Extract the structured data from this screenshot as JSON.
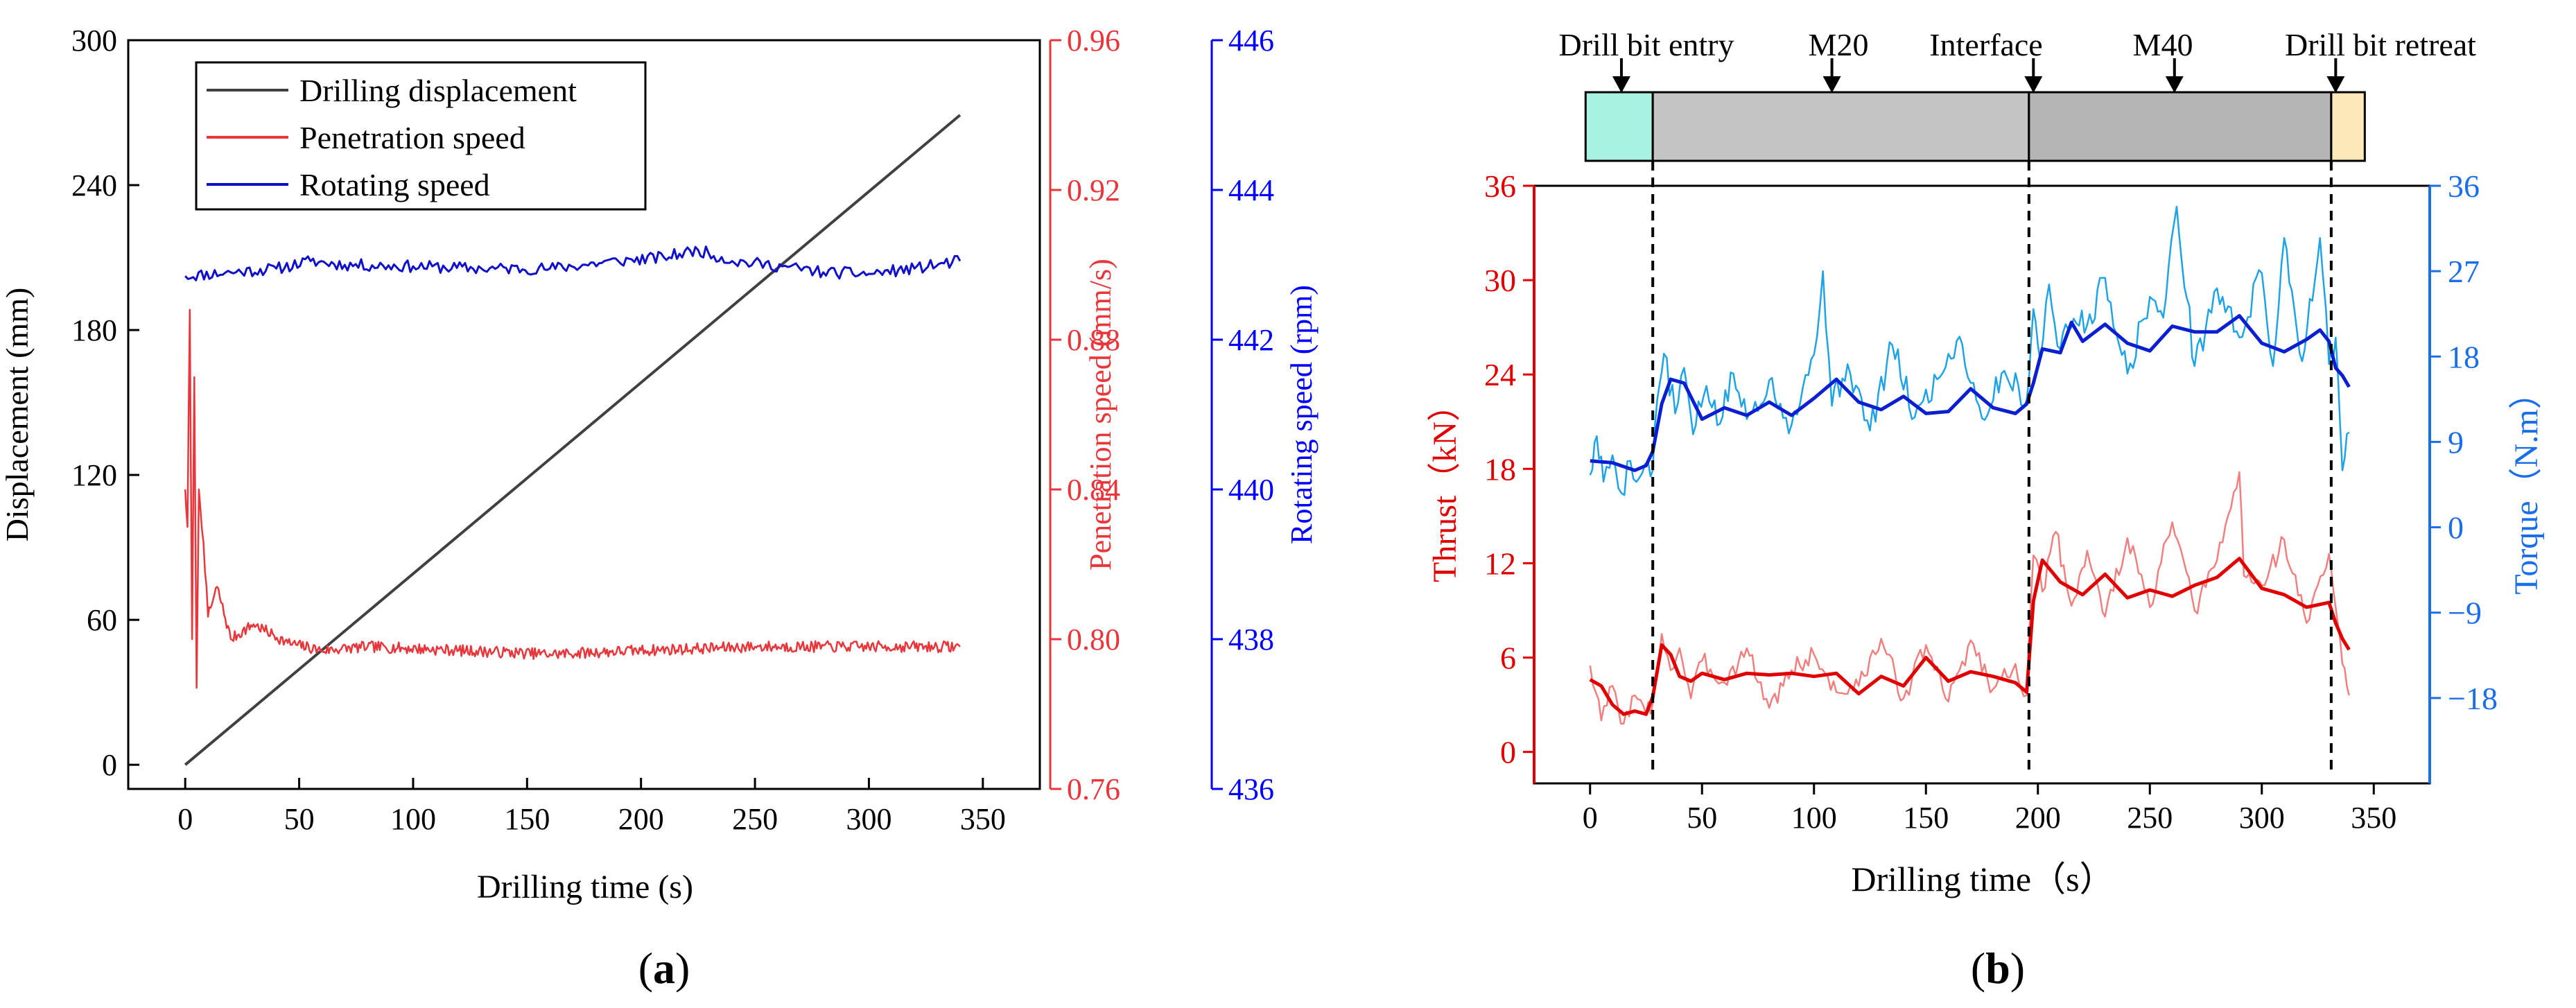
{
  "colors": {
    "axis": "#000000",
    "displacement": "#404040",
    "penetration": "#e8363b",
    "rotating": "#1010cc",
    "rotating_axis": "#0000ff",
    "thrust_raw": "#f07f7f",
    "thrust_smooth": "#e00000",
    "torque_raw": "#1ea3e6",
    "torque_smooth": "#0a1fd0",
    "bar_entry": "#a8f2e2",
    "bar_m20": "#c4c4c4",
    "bar_m40": "#b5b5b5",
    "bar_retreat": "#fde9b8"
  },
  "chart_data": [
    {
      "id": "a",
      "type": "line",
      "panel_label": "(a)",
      "panel_letter": "a",
      "xlabel": "Drilling time (s)",
      "xlim": [
        -25,
        375
      ],
      "xticks": [
        0,
        50,
        100,
        150,
        200,
        250,
        300,
        350
      ],
      "axes": {
        "left": {
          "label": "Displacement (mm)",
          "lim": [
            -10,
            300
          ],
          "ticks": [
            0,
            60,
            120,
            180,
            240,
            300
          ]
        },
        "right1": {
          "label": "Penetration speed (mm/s)",
          "lim": [
            0.76,
            0.96
          ],
          "ticks": [
            "0.76",
            "0.80",
            "0.84",
            "0.88",
            "0.92",
            "0.96"
          ]
        },
        "right2": {
          "label": "Rotating speed (rpm)",
          "lim": [
            436,
            446
          ],
          "ticks": [
            436,
            438,
            440,
            442,
            444,
            446
          ]
        }
      },
      "legend": {
        "position": "top-left",
        "entries": [
          "Drilling displacement",
          "Penetration speed",
          "Rotating speed"
        ]
      },
      "series": [
        {
          "name": "Drilling displacement",
          "axis": "left",
          "x": [
            0,
            340
          ],
          "y": [
            0,
            269
          ]
        },
        {
          "name": "Penetration speed",
          "axis": "right1",
          "x": [
            0,
            1,
            2,
            3,
            4,
            5,
            6,
            8,
            10,
            14,
            20,
            30,
            45,
            60,
            80,
            120,
            160,
            200,
            250,
            300,
            340
          ],
          "y": [
            0.84,
            0.83,
            0.888,
            0.8,
            0.87,
            0.787,
            0.84,
            0.826,
            0.806,
            0.814,
            0.8,
            0.804,
            0.799,
            0.797,
            0.798,
            0.797,
            0.796,
            0.797,
            0.798,
            0.798,
            0.798
          ]
        },
        {
          "name": "Rotating speed",
          "axis": "right2",
          "x": [
            0,
            20,
            40,
            55,
            70,
            100,
            130,
            160,
            190,
            210,
            225,
            240,
            262,
            280,
            300,
            320,
            340
          ],
          "y": [
            442.85,
            442.9,
            442.95,
            443.05,
            443.0,
            442.98,
            442.95,
            442.95,
            443.05,
            443.1,
            443.2,
            443.05,
            442.98,
            442.9,
            442.88,
            442.95,
            443.05
          ]
        }
      ]
    },
    {
      "id": "b",
      "type": "line",
      "panel_label": "(b)",
      "panel_letter": "b",
      "xlabel": "Drilling time（s）",
      "xlim": [
        -25,
        375
      ],
      "xticks": [
        0,
        50,
        100,
        150,
        200,
        250,
        300,
        350
      ],
      "axes": {
        "left": {
          "label": "Thrust（kN）",
          "lim": [
            -2,
            36
          ],
          "ticks": [
            0,
            6,
            12,
            18,
            24,
            30,
            36
          ]
        },
        "right": {
          "label": "Torque（N.m）",
          "lim": [
            -27,
            36
          ],
          "ticks": [
            "−18",
            "−9",
            "0",
            "9",
            "18",
            "27",
            "36"
          ]
        }
      },
      "markers": [
        {
          "label": "Drill bit entry",
          "x": 28
        },
        {
          "label": "Interface",
          "x": 196
        },
        {
          "label": "Drill bit retreat",
          "x": 331
        }
      ],
      "arrow_labels": [
        {
          "label": "Drill bit entry",
          "x": 14
        },
        {
          "label": "M20",
          "x": 108
        },
        {
          "label": "Interface",
          "x": 198
        },
        {
          "label": "M40",
          "x": 261
        },
        {
          "label": "Drill bit retreat",
          "x": 333
        }
      ],
      "bar_segments": [
        {
          "name": "entry",
          "from": -2,
          "to": 28
        },
        {
          "name": "m20",
          "from": 28,
          "to": 196
        },
        {
          "name": "m40",
          "from": 196,
          "to": 331
        },
        {
          "name": "retreat",
          "from": 331,
          "to": 346
        }
      ],
      "series": [
        {
          "name": "Thrust raw",
          "axis": "left",
          "x": [
            0,
            5,
            10,
            15,
            20,
            25,
            28,
            32,
            36,
            40,
            45,
            50,
            60,
            70,
            80,
            90,
            100,
            110,
            120,
            130,
            140,
            150,
            160,
            170,
            180,
            190,
            195,
            198,
            202,
            208,
            215,
            222,
            230,
            240,
            250,
            260,
            270,
            280,
            290,
            292,
            300,
            310,
            320,
            330,
            333,
            336,
            339
          ],
          "y": [
            5.5,
            2.0,
            4.2,
            1.8,
            3.6,
            2.4,
            3.1,
            7.5,
            5.2,
            6.6,
            3.4,
            5.8,
            4.4,
            6.6,
            2.8,
            5.2,
            6.2,
            3.8,
            4.2,
            7.2,
            3.4,
            6.8,
            3.2,
            7.1,
            4.0,
            5.6,
            3.6,
            12.5,
            10.2,
            14.0,
            9.3,
            12.8,
            8.6,
            13.6,
            9.2,
            14.6,
            9.0,
            12.2,
            17.8,
            11.2,
            10.6,
            13.5,
            8.2,
            12.6,
            9.2,
            5.6,
            3.6
          ]
        },
        {
          "name": "Thrust smoothed",
          "axis": "left",
          "x": [
            0,
            5,
            10,
            15,
            20,
            25,
            28,
            32,
            36,
            40,
            45,
            50,
            60,
            70,
            80,
            90,
            100,
            110,
            120,
            130,
            140,
            150,
            160,
            170,
            180,
            190,
            195,
            198,
            202,
            210,
            220,
            230,
            240,
            250,
            260,
            270,
            280,
            290,
            300,
            310,
            320,
            330,
            333,
            336,
            339
          ],
          "y": [
            4.6,
            4.2,
            3.0,
            2.4,
            2.6,
            2.4,
            3.5,
            6.8,
            6.2,
            4.8,
            4.5,
            5.0,
            4.6,
            5.0,
            4.9,
            5.0,
            4.8,
            5.0,
            3.7,
            4.8,
            4.2,
            6.0,
            4.5,
            5.1,
            4.8,
            4.4,
            3.8,
            9.6,
            12.2,
            10.8,
            10.0,
            11.3,
            9.8,
            10.3,
            9.9,
            10.6,
            11.1,
            12.3,
            10.4,
            10.0,
            9.2,
            9.5,
            8.2,
            7.2,
            6.5
          ]
        },
        {
          "name": "Torque raw",
          "axis": "right",
          "x": [
            0,
            3,
            6,
            10,
            14,
            18,
            22,
            26,
            28,
            30,
            33,
            38,
            42,
            46,
            52,
            58,
            64,
            70,
            80,
            90,
            100,
            104,
            108,
            115,
            125,
            135,
            145,
            155,
            165,
            175,
            185,
            195,
            198,
            201,
            205,
            210,
            216,
            222,
            230,
            240,
            250,
            256,
            262,
            270,
            280,
            290,
            300,
            305,
            310,
            318,
            326,
            330,
            333,
            336,
            339
          ],
          "y": [
            5.5,
            9.6,
            4.8,
            7.6,
            3.6,
            7.0,
            5.2,
            6.8,
            6.0,
            13.5,
            18.3,
            12.0,
            16.8,
            9.8,
            14.9,
            10.9,
            16.2,
            11.4,
            15.5,
            10.8,
            18.2,
            27.0,
            12.8,
            17.2,
            10.2,
            19.2,
            11.6,
            15.6,
            20.1,
            11.5,
            16.5,
            13.4,
            23.0,
            17.6,
            25.6,
            18.8,
            22.0,
            21.3,
            26.3,
            16.2,
            24.3,
            22.1,
            33.8,
            17.0,
            25.2,
            20.0,
            26.8,
            17.0,
            30.5,
            17.5,
            30.5,
            17.2,
            20.0,
            6.0,
            10.0
          ]
        },
        {
          "name": "Torque smoothed",
          "axis": "right",
          "x": [
            0,
            10,
            20,
            25,
            28,
            32,
            36,
            42,
            50,
            60,
            70,
            80,
            90,
            100,
            110,
            120,
            130,
            140,
            150,
            160,
            170,
            180,
            190,
            195,
            198,
            202,
            210,
            215,
            220,
            230,
            240,
            250,
            260,
            270,
            280,
            290,
            300,
            310,
            320,
            326,
            330,
            333,
            336,
            339
          ],
          "y": [
            7.0,
            6.8,
            6.0,
            6.5,
            8.0,
            13.0,
            15.6,
            15.2,
            11.4,
            12.6,
            11.8,
            13.2,
            11.8,
            13.6,
            15.6,
            13.2,
            12.4,
            13.8,
            12.0,
            12.2,
            14.6,
            12.6,
            12.0,
            13.0,
            15.2,
            18.8,
            18.4,
            21.6,
            19.6,
            21.4,
            19.4,
            18.6,
            21.2,
            20.6,
            20.6,
            22.3,
            19.4,
            18.5,
            19.8,
            20.8,
            19.6,
            16.8,
            16.0,
            14.8
          ]
        }
      ]
    }
  ]
}
